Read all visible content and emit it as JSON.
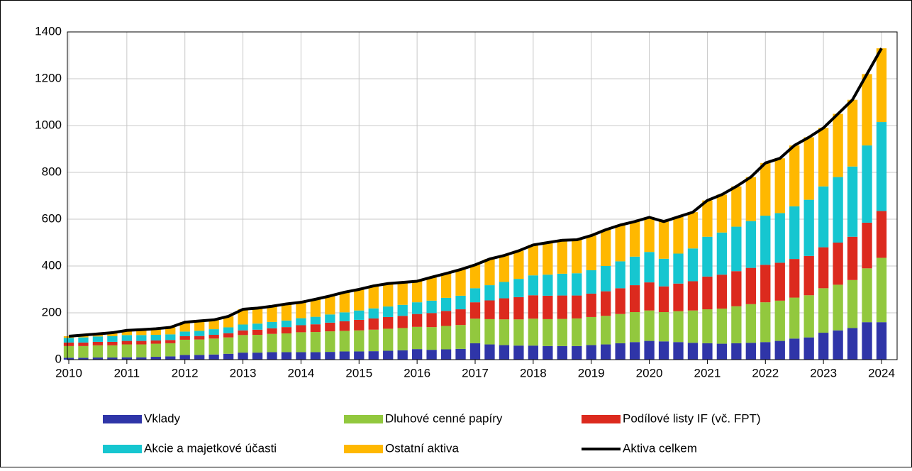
{
  "chart_data": {
    "type": "bar",
    "stacked": true,
    "categories": [
      "2010",
      null,
      null,
      null,
      "2011",
      null,
      null,
      null,
      "2012",
      null,
      null,
      null,
      "2013",
      null,
      null,
      null,
      "2014",
      null,
      null,
      null,
      "2015",
      null,
      null,
      null,
      "2016",
      null,
      null,
      null,
      "2017",
      null,
      null,
      null,
      "2018",
      null,
      null,
      null,
      "2019",
      null,
      null,
      null,
      "2020",
      null,
      null,
      null,
      "2021",
      null,
      null,
      null,
      "2022",
      null,
      null,
      null,
      "2023",
      null,
      null,
      null,
      "2024"
    ],
    "series": [
      {
        "name": "Vklady",
        "color": "#2f35a8",
        "values": [
          8,
          8,
          9,
          9,
          10,
          10,
          12,
          14,
          20,
          20,
          22,
          25,
          30,
          30,
          32,
          32,
          32,
          32,
          33,
          35,
          35,
          36,
          38,
          40,
          45,
          42,
          44,
          46,
          70,
          65,
          62,
          60,
          60,
          58,
          58,
          58,
          62,
          65,
          70,
          75,
          80,
          78,
          75,
          72,
          70,
          68,
          70,
          72,
          75,
          80,
          90,
          95,
          115,
          125,
          135,
          160,
          160
        ]
      },
      {
        "name": "Dluhové cenné papíry",
        "color": "#92c83e",
        "values": [
          50,
          50,
          52,
          52,
          55,
          55,
          56,
          56,
          65,
          66,
          68,
          70,
          75,
          76,
          78,
          80,
          85,
          86,
          88,
          88,
          90,
          92,
          94,
          95,
          95,
          97,
          100,
          102,
          105,
          108,
          110,
          112,
          115,
          115,
          116,
          118,
          120,
          122,
          125,
          128,
          130,
          125,
          132,
          138,
          145,
          150,
          158,
          165,
          170,
          172,
          175,
          180,
          190,
          195,
          205,
          230,
          275
        ]
      },
      {
        "name": "Podílové listy IF (vč. FPT)",
        "color": "#dc2a1e",
        "values": [
          15,
          15,
          15,
          15,
          15,
          15,
          14,
          14,
          15,
          15,
          16,
          18,
          20,
          22,
          24,
          27,
          30,
          33,
          37,
          41,
          45,
          48,
          50,
          52,
          55,
          60,
          64,
          67,
          70,
          80,
          90,
          95,
          100,
          100,
          100,
          98,
          100,
          105,
          110,
          115,
          120,
          110,
          118,
          125,
          140,
          145,
          150,
          155,
          160,
          162,
          165,
          168,
          175,
          180,
          185,
          195,
          200
        ]
      },
      {
        "name": "Akcie a majetkové účasti",
        "color": "#16c6d0",
        "values": [
          20,
          22,
          23,
          24,
          25,
          25,
          24,
          24,
          20,
          22,
          24,
          25,
          25,
          26,
          27,
          28,
          30,
          32,
          35,
          38,
          40,
          43,
          45,
          47,
          50,
          53,
          56,
          58,
          60,
          65,
          70,
          78,
          85,
          90,
          93,
          95,
          100,
          108,
          115,
          122,
          130,
          118,
          128,
          140,
          170,
          180,
          190,
          200,
          210,
          212,
          225,
          240,
          260,
          280,
          300,
          330,
          380
        ]
      },
      {
        "name": "Ostatní aktiva",
        "color": "#ffb800",
        "values": [
          7,
          10,
          11,
          15,
          20,
          23,
          26,
          30,
          40,
          42,
          40,
          47,
          65,
          66,
          67,
          71,
          68,
          75,
          79,
          86,
          90,
          96,
          98,
          96,
          90,
          100,
          104,
          112,
          100,
          112,
          113,
          120,
          130,
          137,
          143,
          143,
          148,
          155,
          155,
          150,
          148,
          159,
          157,
          155,
          155,
          162,
          172,
          188,
          225,
          234,
          260,
          267,
          250,
          270,
          285,
          305,
          315
        ]
      },
      {
        "name": "Aktiva celkem",
        "color": "#000000",
        "type": "line",
        "values": [
          100,
          105,
          110,
          115,
          125,
          128,
          132,
          138,
          160,
          165,
          170,
          185,
          215,
          220,
          228,
          238,
          245,
          258,
          272,
          288,
          300,
          315,
          325,
          330,
          335,
          352,
          368,
          385,
          405,
          430,
          445,
          465,
          490,
          500,
          510,
          512,
          530,
          555,
          575,
          590,
          608,
          590,
          610,
          630,
          680,
          705,
          740,
          780,
          840,
          860,
          915,
          950,
          990,
          1050,
          1110,
          1220,
          1330
        ]
      }
    ],
    "ylim": [
      0,
      1400
    ],
    "yticks": [
      0,
      200,
      400,
      600,
      800,
      1000,
      1200,
      1400
    ],
    "grid": true,
    "legend": "bottom"
  }
}
